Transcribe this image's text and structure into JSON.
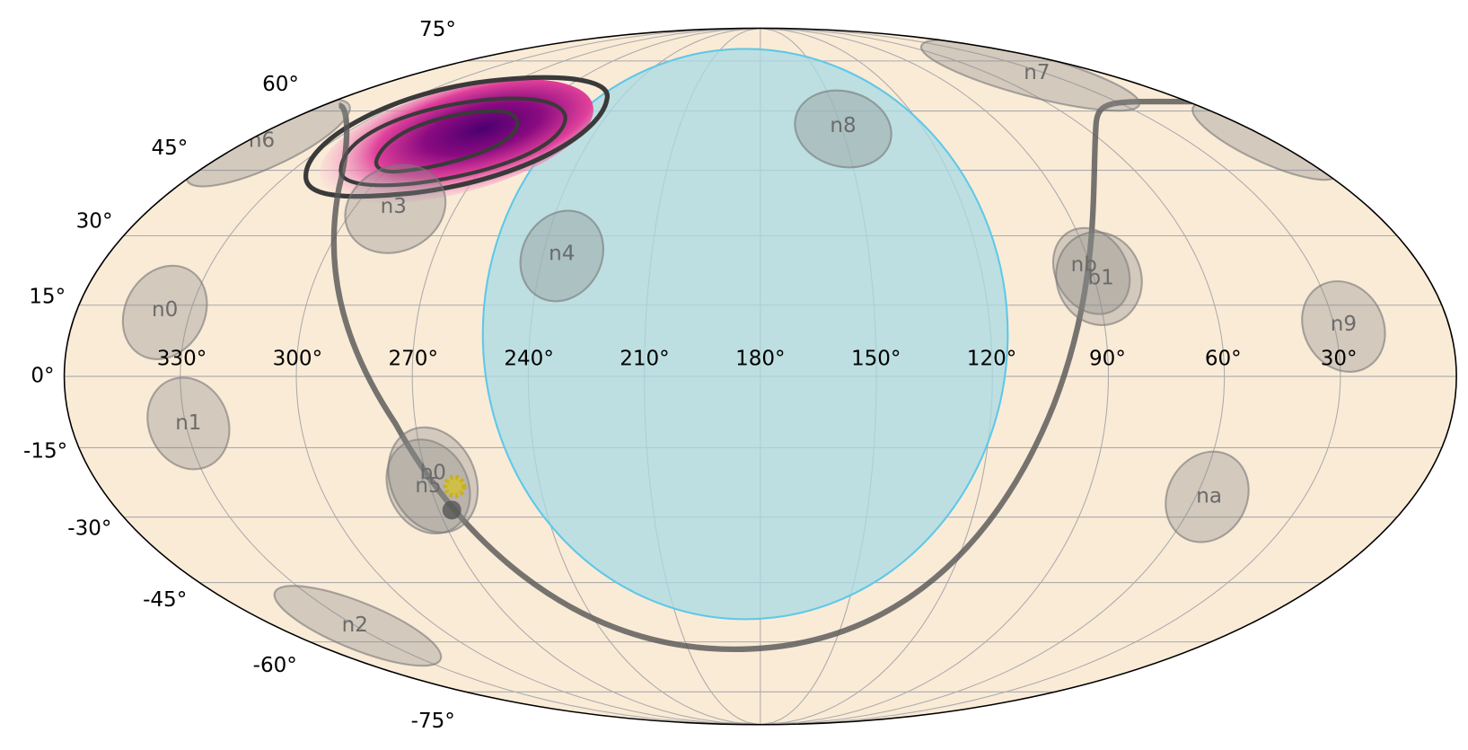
{
  "lat_labels": [
    "75°",
    "60°",
    "45°",
    "30°",
    "15°",
    "0°",
    "-15°",
    "-30°",
    "-45°",
    "-60°",
    "-75°"
  ],
  "lon_labels": [
    "330°",
    "300°",
    "270°",
    "240°",
    "210°",
    "180°",
    "150°",
    "120°",
    "90°",
    "60°",
    "30°"
  ],
  "detectors": [
    "n0",
    "n1",
    "n2",
    "n3",
    "n4",
    "n5",
    "n6",
    "n7",
    "n8",
    "n9",
    "na",
    "nb",
    "b0",
    "b1"
  ]
}
